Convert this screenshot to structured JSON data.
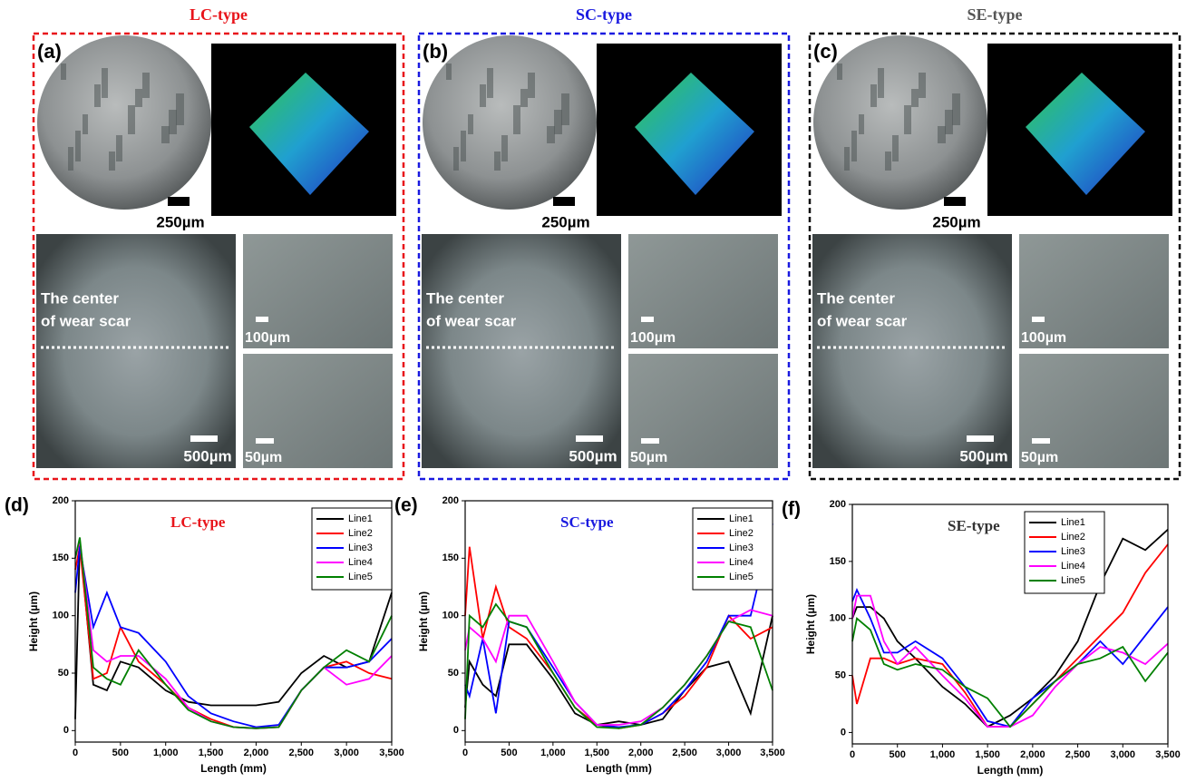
{
  "panels": [
    {
      "title": "LC-type",
      "title_color": "#e8141a",
      "border_color": "#e8141a",
      "label": "(a)",
      "scale_top": "250µm",
      "center_line1": "The center",
      "center_line2": "of wear scar",
      "scale_big": "500µm",
      "scale_mid": "100µm",
      "scale_small": "50µm"
    },
    {
      "title": "SC-type",
      "title_color": "#1a1ae0",
      "border_color": "#1a1ae0",
      "label": "(b)",
      "scale_top": "250µm",
      "center_line1": "The center",
      "center_line2": "of wear scar",
      "scale_big": "500µm",
      "scale_mid": "100µm",
      "scale_small": "50µm"
    },
    {
      "title": "SE-type",
      "title_color": "#555555",
      "border_color": "#111111",
      "label": "(c)",
      "scale_top": "250µm",
      "center_line1": "The center",
      "center_line2": "of wear scar",
      "scale_big": "500µm",
      "scale_mid": "100µm",
      "scale_small": "50µm"
    }
  ],
  "chart_data": [
    {
      "type": "line",
      "panel": "(d)",
      "title": "LC-type",
      "title_color": "#e8141a",
      "x_label": "Length (mm)",
      "y_label": "Height (µm)",
      "xlim": [
        0,
        3500
      ],
      "ylim": [
        -10,
        200
      ],
      "xticks": [
        0,
        500,
        {
          "value": 1000,
          "label": "1,000"
        },
        {
          "value": 1500,
          "label": "1,500"
        },
        {
          "value": 2000,
          "label": "2,000"
        },
        {
          "value": 2500,
          "label": "2,500"
        },
        {
          "value": 3000,
          "label": "3,000"
        },
        {
          "value": 3500,
          "label": "3,500"
        }
      ],
      "yticks": [
        0,
        50,
        100,
        150,
        200
      ],
      "legend": "upper right",
      "x": [
        0,
        50,
        200,
        350,
        500,
        700,
        1000,
        1250,
        1500,
        1750,
        2000,
        2250,
        2500,
        2750,
        3000,
        3250,
        3500
      ],
      "series": [
        {
          "name": "Line1",
          "color": "#000000",
          "values": [
            10,
            165,
            40,
            35,
            60,
            55,
            35,
            25,
            22,
            22,
            22,
            25,
            50,
            65,
            55,
            60,
            120
          ]
        },
        {
          "name": "Line2",
          "color": "#ff0000",
          "values": [
            140,
            160,
            45,
            50,
            90,
            60,
            40,
            20,
            10,
            3,
            2,
            3,
            35,
            55,
            60,
            50,
            45
          ]
        },
        {
          "name": "Line3",
          "color": "#0000ff",
          "values": [
            120,
            160,
            90,
            120,
            90,
            85,
            60,
            30,
            15,
            8,
            3,
            5,
            35,
            55,
            55,
            60,
            80
          ]
        },
        {
          "name": "Line4",
          "color": "#ff00ff",
          "values": [
            150,
            165,
            70,
            60,
            65,
            65,
            45,
            20,
            8,
            3,
            2,
            3,
            35,
            55,
            40,
            45,
            65
          ]
        },
        {
          "name": "Line5",
          "color": "#008000",
          "values": [
            150,
            168,
            55,
            45,
            40,
            70,
            40,
            18,
            8,
            3,
            2,
            3,
            35,
            55,
            70,
            60,
            100
          ]
        }
      ]
    },
    {
      "type": "line",
      "panel": "(e)",
      "title": "SC-type",
      "title_color": "#1a1ae0",
      "x_label": "Length (mm)",
      "y_label": "Height (µm)",
      "xlim": [
        0,
        3500
      ],
      "ylim": [
        -10,
        200
      ],
      "xticks": [
        0,
        500,
        {
          "value": 1000,
          "label": "1,000"
        },
        {
          "value": 1500,
          "label": "1,500"
        },
        {
          "value": 2000,
          "label": "2,000"
        },
        {
          "value": 2500,
          "label": "2,500"
        },
        {
          "value": 3000,
          "label": "3,000"
        },
        {
          "value": 3500,
          "label": "3,500"
        }
      ],
      "yticks": [
        0,
        50,
        100,
        150,
        200
      ],
      "legend": "upper right",
      "x": [
        0,
        50,
        200,
        350,
        500,
        700,
        1000,
        1250,
        1500,
        1750,
        2000,
        2250,
        2500,
        2750,
        3000,
        3250,
        3500
      ],
      "series": [
        {
          "name": "Line1",
          "color": "#000000",
          "values": [
            20,
            60,
            40,
            30,
            75,
            75,
            45,
            15,
            5,
            8,
            5,
            10,
            35,
            55,
            60,
            15,
            100
          ]
        },
        {
          "name": "Line2",
          "color": "#ff0000",
          "values": [
            100,
            160,
            80,
            125,
            90,
            80,
            50,
            20,
            5,
            2,
            5,
            15,
            30,
            55,
            100,
            80,
            90
          ]
        },
        {
          "name": "Line3",
          "color": "#0000ff",
          "values": [
            40,
            30,
            80,
            15,
            95,
            90,
            55,
            25,
            5,
            3,
            5,
            15,
            35,
            60,
            100,
            100,
            180
          ]
        },
        {
          "name": "Line4",
          "color": "#ff00ff",
          "values": [
            70,
            90,
            80,
            60,
            100,
            100,
            60,
            25,
            5,
            5,
            8,
            20,
            40,
            65,
            95,
            105,
            100
          ]
        },
        {
          "name": "Line5",
          "color": "#008000",
          "values": [
            10,
            100,
            90,
            110,
            95,
            90,
            50,
            20,
            3,
            2,
            5,
            20,
            40,
            65,
            95,
            90,
            35
          ]
        }
      ]
    },
    {
      "type": "line",
      "panel": "(f)",
      "title": "SE-type",
      "title_color": "#333333",
      "x_label": "Length (mm)",
      "y_label": "Height (µm)",
      "xlim": [
        0,
        3500
      ],
      "ylim": [
        -10,
        200
      ],
      "xticks": [
        0,
        500,
        {
          "value": 1000,
          "label": "1,000"
        },
        {
          "value": 1500,
          "label": "1,500"
        },
        {
          "value": 2000,
          "label": "2,000"
        },
        {
          "value": 2500,
          "label": "2,500"
        },
        {
          "value": 3000,
          "label": "3,000"
        },
        {
          "value": 3500,
          "label": "3,500"
        }
      ],
      "yticks": [
        0,
        50,
        100,
        150,
        200
      ],
      "legend": "upper left",
      "x": [
        0,
        50,
        200,
        350,
        500,
        700,
        1000,
        1250,
        1500,
        1750,
        2000,
        2250,
        2500,
        2750,
        3000,
        3250,
        3500
      ],
      "series": [
        {
          "name": "Line1",
          "color": "#000000",
          "values": [
            100,
            110,
            110,
            100,
            80,
            65,
            40,
            25,
            5,
            15,
            30,
            50,
            80,
            130,
            170,
            160,
            178
          ]
        },
        {
          "name": "Line2",
          "color": "#ff0000",
          "values": [
            50,
            25,
            65,
            65,
            60,
            65,
            60,
            35,
            5,
            5,
            25,
            45,
            65,
            85,
            105,
            140,
            165
          ]
        },
        {
          "name": "Line3",
          "color": "#0000ff",
          "values": [
            115,
            125,
            100,
            70,
            70,
            80,
            65,
            40,
            10,
            5,
            30,
            45,
            60,
            80,
            60,
            85,
            110
          ]
        },
        {
          "name": "Line4",
          "color": "#ff00ff",
          "values": [
            100,
            120,
            120,
            80,
            60,
            75,
            50,
            30,
            5,
            5,
            15,
            40,
            60,
            75,
            70,
            60,
            78
          ]
        },
        {
          "name": "Line5",
          "color": "#008000",
          "values": [
            80,
            100,
            90,
            60,
            55,
            60,
            55,
            40,
            30,
            5,
            25,
            45,
            60,
            65,
            75,
            45,
            70
          ]
        }
      ]
    }
  ]
}
